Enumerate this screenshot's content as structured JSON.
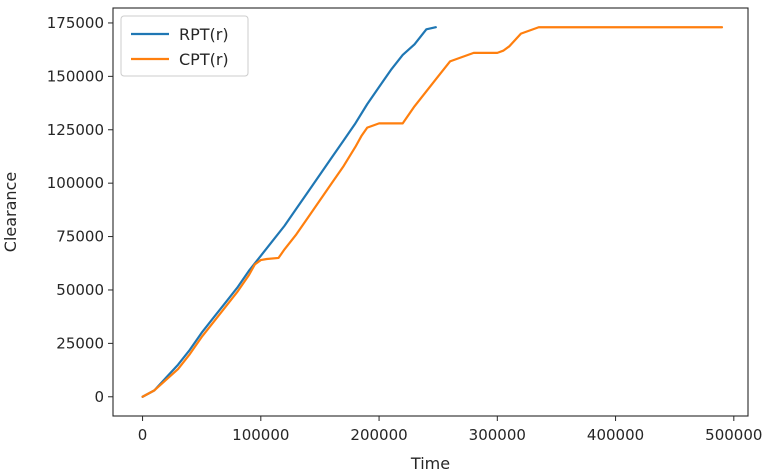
{
  "chart_data": {
    "type": "line",
    "title": "",
    "xlabel": "Time",
    "ylabel": "Clearance",
    "xlim": [
      -25000,
      512000
    ],
    "ylim": [
      -9000,
      182000
    ],
    "xticks": [
      0,
      100000,
      200000,
      300000,
      400000,
      500000
    ],
    "xtick_labels": [
      "0",
      "100000",
      "200000",
      "300000",
      "400000",
      "500000"
    ],
    "yticks": [
      0,
      25000,
      50000,
      75000,
      100000,
      125000,
      150000,
      175000
    ],
    "ytick_labels": [
      "0",
      "25000",
      "50000",
      "75000",
      "100000",
      "125000",
      "150000",
      "175000"
    ],
    "grid": false,
    "legend_position": "top-left",
    "series": [
      {
        "name": "RPT(r)",
        "color": "#1f77b4",
        "x": [
          0,
          10000,
          20000,
          30000,
          40000,
          50000,
          60000,
          70000,
          80000,
          90000,
          100000,
          110000,
          120000,
          130000,
          140000,
          150000,
          160000,
          170000,
          180000,
          190000,
          200000,
          210000,
          220000,
          230000,
          240000,
          248000
        ],
        "y": [
          0,
          3000,
          9000,
          15000,
          22000,
          30000,
          37000,
          44000,
          51000,
          59000,
          66000,
          73000,
          80000,
          88000,
          96000,
          104000,
          112000,
          120000,
          128000,
          137000,
          145000,
          153000,
          160000,
          165000,
          172000,
          173000
        ]
      },
      {
        "name": "CPT(r)",
        "color": "#ff7f0e",
        "x": [
          0,
          10000,
          20000,
          30000,
          40000,
          50000,
          60000,
          70000,
          80000,
          90000,
          95000,
          100000,
          105000,
          115000,
          120000,
          130000,
          140000,
          150000,
          160000,
          170000,
          180000,
          185000,
          190000,
          200000,
          210000,
          220000,
          230000,
          240000,
          250000,
          260000,
          270000,
          280000,
          300000,
          305000,
          310000,
          320000,
          330000,
          335000,
          400000,
          450000,
          490000
        ],
        "y": [
          0,
          3000,
          8000,
          13000,
          20000,
          28000,
          35000,
          42000,
          49000,
          57000,
          62000,
          64000,
          64500,
          65000,
          69000,
          76000,
          84000,
          92000,
          100000,
          108000,
          117000,
          122000,
          126000,
          128000,
          128000,
          128000,
          136000,
          143000,
          150000,
          157000,
          159000,
          161000,
          161000,
          162000,
          164000,
          170000,
          172000,
          173000,
          173000,
          173000,
          173000
        ]
      }
    ]
  }
}
